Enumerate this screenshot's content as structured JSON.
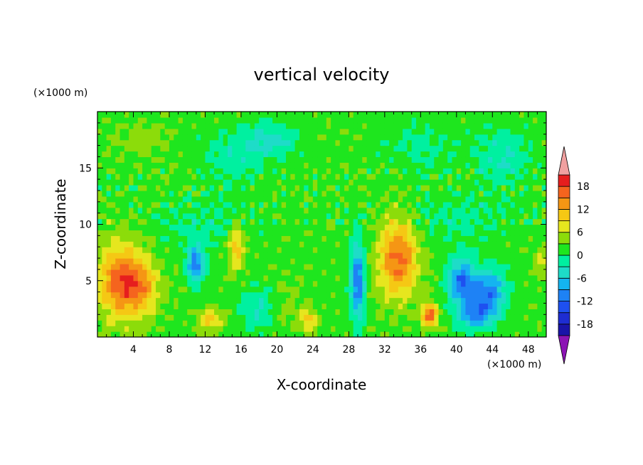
{
  "chart_data": {
    "type": "heatmap",
    "title": "vertical velocity",
    "xlabel": "X-coordinate",
    "ylabel": "Z-coordinate",
    "x_unit": "(×1000 m)",
    "y_unit": "(×1000 m)",
    "xlim": [
      0,
      50
    ],
    "ylim": [
      0,
      20
    ],
    "x_ticks": [
      "4",
      "8",
      "12",
      "16",
      "20",
      "24",
      "28",
      "32",
      "36",
      "40",
      "44",
      "48"
    ],
    "y_ticks": [
      "5",
      "10",
      "15"
    ],
    "x_tick_values": [
      4,
      8,
      12,
      16,
      20,
      24,
      28,
      32,
      36,
      40,
      44,
      48
    ],
    "y_tick_values": [
      5,
      10,
      15
    ],
    "colorbar": {
      "labels": [
        "18",
        "12",
        "6",
        "0",
        "-6",
        "-12",
        "-18"
      ],
      "label_values": [
        18,
        12,
        6,
        0,
        -6,
        -12,
        -18
      ],
      "levels": [
        -21,
        -18,
        -15,
        -12,
        -9,
        -6,
        -3,
        0,
        3,
        6,
        9,
        12,
        15,
        18,
        21
      ],
      "colors": [
        "#5a0aa0",
        "#1a14a8",
        "#1e2dd2",
        "#1e50f0",
        "#1e82f5",
        "#14b4f0",
        "#1edcc8",
        "#00f0a0",
        "#1ee61e",
        "#8cdc0a",
        "#e6e61e",
        "#f5c814",
        "#f59614",
        "#f5641e",
        "#e61e1e",
        "#c81414"
      ],
      "under_color": "#8c14b4",
      "over_color": "#f0a0a0"
    },
    "features": [
      {
        "x": 2.5,
        "z": 5.0,
        "peak": 14,
        "sx": 2.4,
        "sz": 3.2
      },
      {
        "x": 5.0,
        "z": 4.5,
        "peak": 9,
        "sx": 2.0,
        "sz": 2.5
      },
      {
        "x": 11.0,
        "z": 6.5,
        "peak": -13,
        "sx": 1.0,
        "sz": 1.6
      },
      {
        "x": 12.5,
        "z": 1.5,
        "peak": 8,
        "sx": 1.3,
        "sz": 1.0
      },
      {
        "x": 15.5,
        "z": 8.0,
        "peak": 9,
        "sx": 0.9,
        "sz": 2.0
      },
      {
        "x": 18.0,
        "z": 2.5,
        "peak": -5,
        "sx": 2.0,
        "sz": 2.0
      },
      {
        "x": 21.0,
        "z": 3.0,
        "peak": 2,
        "sx": 2.0,
        "sz": 2.5
      },
      {
        "x": 23.5,
        "z": 1.5,
        "peak": 8,
        "sx": 0.9,
        "sz": 1.0
      },
      {
        "x": 29.0,
        "z": 5.0,
        "peak": -14,
        "sx": 0.8,
        "sz": 3.5
      },
      {
        "x": 33.5,
        "z": 7.0,
        "peak": 14,
        "sx": 2.2,
        "sz": 3.5
      },
      {
        "x": 37.0,
        "z": 2.0,
        "peak": 16,
        "sx": 0.9,
        "sz": 1.0
      },
      {
        "x": 40.5,
        "z": 5.0,
        "peak": -13,
        "sx": 1.5,
        "sz": 2.0
      },
      {
        "x": 43.5,
        "z": 4.0,
        "peak": -13,
        "sx": 2.0,
        "sz": 2.0
      },
      {
        "x": 42.0,
        "z": 2.0,
        "peak": -10,
        "sx": 2.0,
        "sz": 1.3
      },
      {
        "x": 49.5,
        "z": 6.5,
        "peak": 6,
        "sx": 0.6,
        "sz": 1.2
      },
      {
        "x": 5.0,
        "z": 17.5,
        "peak": 3,
        "sx": 3.0,
        "sz": 1.5
      },
      {
        "x": 15.0,
        "z": 16.0,
        "peak": -4,
        "sx": 3.0,
        "sz": 2.5
      },
      {
        "x": 19.5,
        "z": 17.5,
        "peak": -6,
        "sx": 3.0,
        "sz": 1.5
      },
      {
        "x": 36.0,
        "z": 17.0,
        "peak": -3,
        "sx": 4.0,
        "sz": 2.0
      },
      {
        "x": 45.0,
        "z": 16.0,
        "peak": -5,
        "sx": 3.0,
        "sz": 2.5
      },
      {
        "x": 12.0,
        "z": 10.0,
        "peak": -3,
        "sx": 5.0,
        "sz": 2.0
      },
      {
        "x": 40.0,
        "z": 10.5,
        "peak": -3,
        "sx": 6.0,
        "sz": 2.0
      }
    ]
  }
}
